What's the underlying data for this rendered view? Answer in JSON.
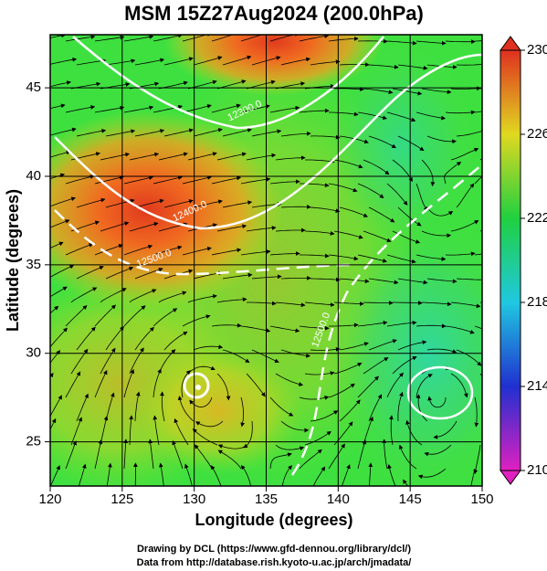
{
  "chart_data": {
    "type": "map",
    "title": "MSM 15Z27Aug2024 (200.0hPa)",
    "xlabel": "Longitude (degrees)",
    "ylabel": "Latitude  (degrees)",
    "xlim": [
      120,
      150
    ],
    "xticks": [
      120,
      125,
      130,
      135,
      140,
      145,
      150
    ],
    "ylim": [
      22.5,
      48
    ],
    "yticks": [
      25,
      30,
      35,
      40,
      45
    ],
    "colorbar": {
      "clim": [
        210,
        230
      ],
      "ticks": [
        210,
        214,
        218,
        222,
        226,
        230
      ]
    },
    "contour_labels": [
      "12500.0",
      "12400.0",
      "12300.0",
      "12500.0"
    ],
    "credits": [
      "Drawing by DCL (https://www.gfd-dennou.org/library/dcl/)",
      "Data from http://database.rish.kyoto-u.ac.jp/arch/jmadata/"
    ]
  }
}
